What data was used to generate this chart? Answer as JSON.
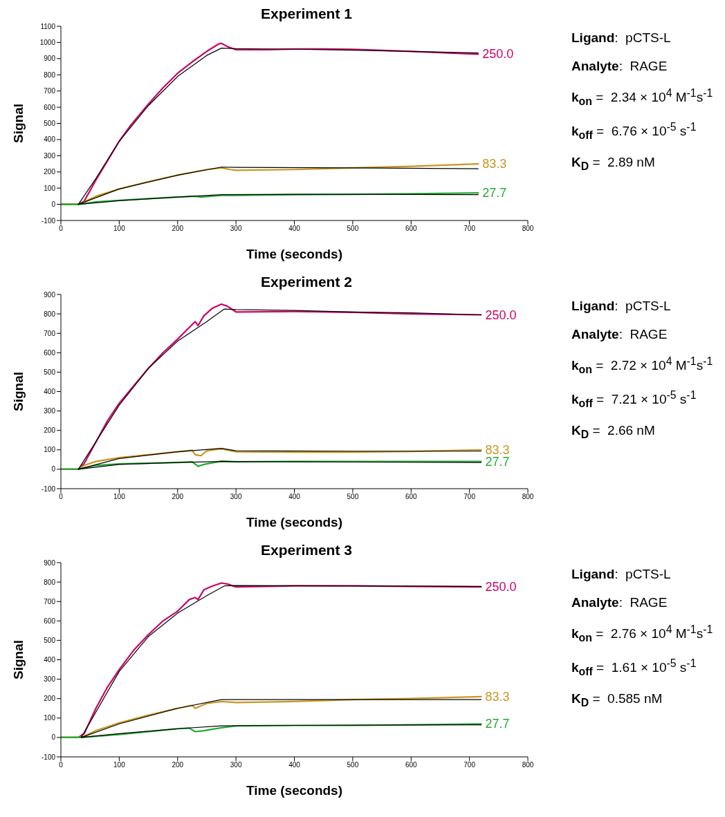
{
  "chart_data": [
    {
      "type": "line",
      "title": "Experiment 1",
      "xlabel": "Time (seconds)",
      "ylabel": "Signal",
      "xlim": [
        0,
        800
      ],
      "xticks": [
        0,
        100,
        200,
        300,
        400,
        500,
        600,
        700,
        800
      ],
      "ylim": [
        -100,
        1100
      ],
      "yticks": [
        -100,
        0,
        100,
        200,
        300,
        400,
        500,
        600,
        700,
        800,
        900,
        1000,
        1100
      ],
      "grid": false,
      "legend": false,
      "marker": "none",
      "line_style": "solid",
      "annotations": [
        "Ligand:  pCTS-L",
        "Analyte:  RAGE",
        "k$_{on}$ =  2.34 × 10$^{4}$ M$^{-1}$s$^{-1}$",
        "k$_{off}$ =  6.76 × 10$^{-5}$ s$^{-1}$",
        "K$_{D}$ =  2.89 nM"
      ],
      "series": [
        {
          "name": "250.0",
          "color": "#cc0066",
          "x": [
            0,
            30,
            40,
            60,
            80,
            100,
            120,
            150,
            175,
            200,
            225,
            250,
            270,
            275,
            285,
            300,
            350,
            400,
            450,
            500,
            600,
            700,
            715
          ],
          "values": [
            0,
            0,
            20,
            150,
            270,
            390,
            490,
            620,
            720,
            810,
            880,
            945,
            990,
            995,
            975,
            955,
            955,
            960,
            960,
            958,
            945,
            930,
            928
          ]
        },
        {
          "name": "83.3",
          "color": "#c8961e",
          "x": [
            0,
            30,
            40,
            60,
            100,
            150,
            200,
            250,
            275,
            290,
            300,
            400,
            500,
            600,
            715
          ],
          "values": [
            0,
            0,
            15,
            50,
            95,
            140,
            180,
            215,
            225,
            215,
            210,
            215,
            225,
            235,
            250
          ]
        },
        {
          "name": "27.7",
          "color": "#22aa33",
          "x": [
            0,
            30,
            60,
            100,
            150,
            200,
            230,
            240,
            275,
            300,
            400,
            500,
            600,
            715
          ],
          "values": [
            0,
            0,
            15,
            25,
            35,
            45,
            50,
            45,
            55,
            55,
            60,
            62,
            65,
            70
          ]
        },
        {
          "color": "#000000",
          "x": [
            30,
            60,
            100,
            150,
            200,
            250,
            275,
            300,
            400,
            500,
            600,
            715
          ],
          "values": [
            0,
            160,
            390,
            610,
            790,
            920,
            965,
            962,
            958,
            952,
            945,
            935
          ]
        },
        {
          "color": "#000000",
          "x": [
            30,
            100,
            200,
            275,
            300,
            500,
            715
          ],
          "values": [
            0,
            95,
            180,
            230,
            228,
            225,
            220
          ]
        },
        {
          "color": "#000000",
          "x": [
            30,
            100,
            200,
            275,
            400,
            715
          ],
          "values": [
            0,
            22,
            45,
            60,
            62,
            60
          ]
        }
      ]
    },
    {
      "type": "line",
      "title": "Experiment 2",
      "xlabel": "Time (seconds)",
      "ylabel": "Signal",
      "xlim": [
        0,
        800
      ],
      "xticks": [
        0,
        100,
        200,
        300,
        400,
        500,
        600,
        700,
        800
      ],
      "ylim": [
        -100,
        900
      ],
      "yticks": [
        -100,
        0,
        100,
        200,
        300,
        400,
        500,
        600,
        700,
        800,
        900
      ],
      "grid": false,
      "legend": false,
      "marker": "none",
      "line_style": "solid",
      "annotations": [
        "Ligand:  pCTS-L",
        "Analyte:  RAGE",
        "k$_{on}$ =  2.72 × 10$^{4}$ M$^{-1}$s$^{-1}$",
        "k$_{off}$ =  7.21 × 10$^{-5}$ s$^{-1}$",
        "K$_{D}$ =  2.66 nM"
      ],
      "series": [
        {
          "name": "250.0",
          "color": "#cc0066",
          "x": [
            0,
            30,
            40,
            60,
            80,
            100,
            125,
            150,
            175,
            200,
            220,
            230,
            235,
            245,
            260,
            275,
            285,
            300,
            400,
            500,
            600,
            720
          ],
          "values": [
            0,
            0,
            30,
            140,
            250,
            340,
            430,
            520,
            600,
            670,
            730,
            760,
            740,
            790,
            830,
            850,
            840,
            810,
            812,
            808,
            800,
            795
          ]
        },
        {
          "name": "83.3",
          "color": "#c8961e",
          "x": [
            0,
            30,
            40,
            60,
            100,
            150,
            200,
            225,
            230,
            240,
            250,
            275,
            300,
            400,
            500,
            600,
            720
          ],
          "values": [
            0,
            0,
            20,
            40,
            60,
            75,
            90,
            98,
            75,
            70,
            95,
            105,
            90,
            88,
            88,
            92,
            100
          ]
        },
        {
          "name": "27.7",
          "color": "#22aa33",
          "x": [
            0,
            30,
            60,
            100,
            200,
            225,
            235,
            245,
            275,
            300,
            400,
            500,
            600,
            720
          ],
          "values": [
            0,
            0,
            20,
            28,
            35,
            38,
            15,
            25,
            42,
            38,
            40,
            40,
            40,
            40
          ]
        },
        {
          "color": "#000000",
          "x": [
            30,
            100,
            150,
            200,
            250,
            280,
            300,
            400,
            500,
            600,
            720
          ],
          "values": [
            0,
            330,
            520,
            660,
            760,
            825,
            822,
            818,
            810,
            805,
            795
          ]
        },
        {
          "color": "#000000",
          "x": [
            30,
            100,
            200,
            275,
            300,
            500,
            720
          ],
          "values": [
            0,
            55,
            90,
            108,
            95,
            93,
            93
          ]
        },
        {
          "color": "#000000",
          "x": [
            30,
            100,
            200,
            275,
            400,
            720
          ],
          "values": [
            0,
            25,
            35,
            40,
            38,
            35
          ]
        }
      ]
    },
    {
      "type": "line",
      "title": "Experiment 3",
      "xlabel": "Time (seconds)",
      "ylabel": "Signal",
      "xlim": [
        0,
        800
      ],
      "xticks": [
        0,
        100,
        200,
        300,
        400,
        500,
        600,
        700,
        800
      ],
      "ylim": [
        -100,
        900
      ],
      "yticks": [
        -100,
        0,
        100,
        200,
        300,
        400,
        500,
        600,
        700,
        800,
        900
      ],
      "grid": false,
      "legend": false,
      "marker": "none",
      "line_style": "solid",
      "annotations": [
        "Ligand:  pCTS-L",
        "Analyte:  RAGE",
        "k$_{on}$ =  2.76 × 10$^{4}$ M$^{-1}$s$^{-1}$",
        "k$_{off}$ =  1.61 × 10$^{-5}$ s$^{-1}$",
        "K$_{D}$ =  0.585 nM"
      ],
      "series": [
        {
          "name": "250.0",
          "color": "#cc0066",
          "x": [
            0,
            30,
            40,
            60,
            80,
            100,
            125,
            150,
            175,
            200,
            220,
            230,
            235,
            245,
            260,
            275,
            285,
            300,
            400,
            500,
            600,
            720
          ],
          "values": [
            0,
            0,
            20,
            150,
            260,
            350,
            450,
            530,
            600,
            650,
            710,
            720,
            710,
            760,
            780,
            795,
            790,
            775,
            780,
            780,
            778,
            775
          ]
        },
        {
          "name": "83.3",
          "color": "#c8961e",
          "x": [
            0,
            35,
            60,
            100,
            150,
            200,
            225,
            230,
            250,
            275,
            300,
            400,
            500,
            600,
            720
          ],
          "values": [
            0,
            0,
            35,
            75,
            115,
            150,
            165,
            150,
            175,
            185,
            180,
            185,
            195,
            200,
            210
          ]
        },
        {
          "name": "27.7",
          "color": "#22aa33",
          "x": [
            0,
            35,
            100,
            200,
            220,
            230,
            245,
            275,
            300,
            400,
            500,
            600,
            720
          ],
          "values": [
            0,
            0,
            15,
            45,
            48,
            30,
            35,
            50,
            60,
            62,
            62,
            65,
            70
          ]
        },
        {
          "color": "#000000",
          "x": [
            35,
            100,
            150,
            200,
            250,
            280,
            300,
            500,
            720
          ],
          "values": [
            0,
            340,
            520,
            640,
            730,
            780,
            782,
            780,
            778
          ]
        },
        {
          "color": "#000000",
          "x": [
            35,
            100,
            200,
            275,
            300,
            500,
            720
          ],
          "values": [
            0,
            70,
            150,
            195,
            195,
            195,
            195
          ]
        },
        {
          "color": "#000000",
          "x": [
            35,
            100,
            200,
            275,
            400,
            720
          ],
          "values": [
            0,
            20,
            45,
            60,
            62,
            65
          ]
        }
      ]
    }
  ]
}
